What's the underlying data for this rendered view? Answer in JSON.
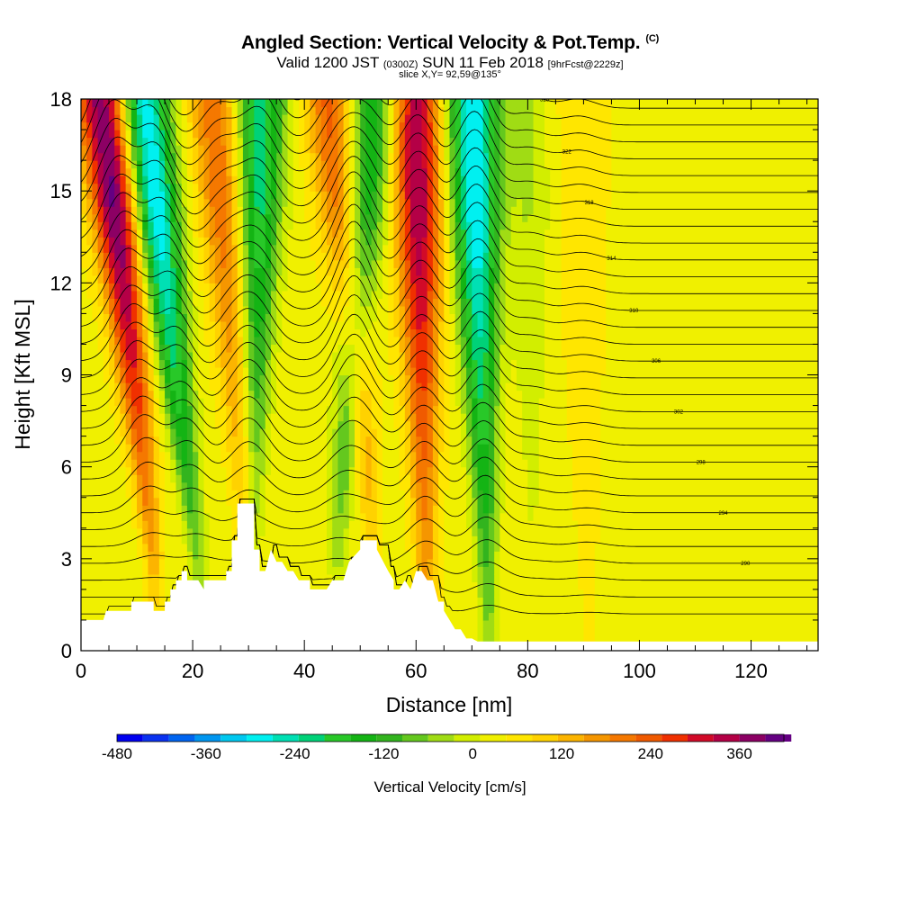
{
  "title": {
    "main": "Angled Section: Vertical Velocity & Pot.Temp.",
    "copyright": "(C)",
    "valid_prefix": "Valid 1200 JST",
    "utc": "(0300Z)",
    "valid_date": "SUN 11 Feb 2018",
    "forecast": "[9hrFcst@2229z]",
    "slice": "slice X,Y= 92,59@135°"
  },
  "colors": {
    "palette": [
      "#0000f0",
      "#0a32f0",
      "#0064f0",
      "#0096f0",
      "#00c8f0",
      "#00f0f0",
      "#00e0b4",
      "#00d278",
      "#28c828",
      "#14b414",
      "#32b41e",
      "#64c81e",
      "#a0dc14",
      "#d2ee00",
      "#f0f000",
      "#ffe600",
      "#ffd200",
      "#fcb400",
      "#f59600",
      "#f57800",
      "#f05a00",
      "#f03000",
      "#d20a28",
      "#b40046",
      "#8c0064",
      "#640082"
    ]
  },
  "chart_data": {
    "type": "heatmap",
    "title": "Angled Section: Vertical Velocity & Pot.Temp.",
    "xlabel": "Distance [nm]",
    "ylabel": "Height [Kft MSL]",
    "xlim": [
      0,
      132
    ],
    "ylim": [
      0,
      18
    ],
    "xticks": [
      0,
      20,
      40,
      60,
      80,
      100,
      120
    ],
    "xtick_labels": [
      "0",
      "20",
      "40",
      "60",
      "80",
      "100",
      "120"
    ],
    "yticks": [
      0,
      3,
      6,
      9,
      12,
      15,
      18
    ],
    "ytick_labels": [
      "0",
      "3",
      "6",
      "9",
      "12",
      "15",
      "18"
    ],
    "colorbar": {
      "label": "Vertical Velocity [cm/s]",
      "min": -480,
      "max": 420,
      "step": 35,
      "tick_values": [
        -480,
        -360,
        -240,
        -120,
        0,
        120,
        240,
        360
      ],
      "tick_labels": [
        "-480",
        "-360",
        "-240",
        "-120",
        "0",
        "120",
        "240",
        "360"
      ]
    },
    "updraft_bands": [
      {
        "x_top": 4,
        "x_bottom": 13,
        "y_bottom": 3,
        "peak_cm_s": 380
      },
      {
        "x_top": 24,
        "x_bottom": 30,
        "y_bottom": 3,
        "peak_cm_s": 190
      },
      {
        "x_top": 45,
        "x_bottom": 52,
        "y_bottom": 4,
        "peak_cm_s": 220
      },
      {
        "x_top": 60,
        "x_bottom": 62,
        "y_bottom": 1,
        "peak_cm_s": 320
      },
      {
        "x_top": 89,
        "x_bottom": 91,
        "y_bottom": 0.5,
        "peak_cm_s": 45
      }
    ],
    "downdraft_bands": [
      {
        "x_top": 11,
        "x_bottom": 21,
        "y_bottom": 3,
        "peak_cm_s": -350
      },
      {
        "x_top": 32,
        "x_bottom": 31,
        "y_bottom": 4,
        "peak_cm_s": -260
      },
      {
        "x_top": 52,
        "x_bottom": 46,
        "y_bottom": 3,
        "peak_cm_s": -240
      },
      {
        "x_top": 70,
        "x_bottom": 73,
        "y_bottom": 1,
        "peak_cm_s": -340
      },
      {
        "x_top": 80,
        "x_bottom": 81,
        "y_bottom": 2,
        "peak_cm_s": -60
      }
    ],
    "terrain_kft": [
      [
        0,
        1.0
      ],
      [
        4,
        1.0
      ],
      [
        4.5,
        1.3
      ],
      [
        9,
        1.3
      ],
      [
        9,
        1.6
      ],
      [
        13,
        1.6
      ],
      [
        13,
        1.3
      ],
      [
        15,
        1.3
      ],
      [
        15,
        1.6
      ],
      [
        16,
        1.6
      ],
      [
        16,
        2.0
      ],
      [
        17,
        2.0
      ],
      [
        17,
        2.3
      ],
      [
        18,
        2.3
      ],
      [
        18,
        2.6
      ],
      [
        19,
        2.6
      ],
      [
        19,
        2.3
      ],
      [
        21,
        2.3
      ],
      [
        22,
        2.0
      ],
      [
        22,
        2.3
      ],
      [
        26,
        2.3
      ],
      [
        26,
        2.6
      ],
      [
        27,
        2.6
      ],
      [
        27,
        3.6
      ],
      [
        28,
        3.6
      ],
      [
        28,
        4.8
      ],
      [
        31,
        4.8
      ],
      [
        31,
        3.3
      ],
      [
        32,
        3.3
      ],
      [
        32,
        2.6
      ],
      [
        33,
        2.6
      ],
      [
        34,
        3.3
      ],
      [
        35,
        2.9
      ],
      [
        36,
        2.9
      ],
      [
        37,
        2.6
      ],
      [
        38,
        2.6
      ],
      [
        39,
        2.3
      ],
      [
        41,
        2.3
      ],
      [
        41,
        2.0
      ],
      [
        44,
        2.0
      ],
      [
        45,
        2.3
      ],
      [
        47,
        2.3
      ],
      [
        48,
        2.9
      ],
      [
        50,
        3.3
      ],
      [
        50,
        3.6
      ],
      [
        53,
        3.6
      ],
      [
        53,
        3.3
      ],
      [
        55,
        2.6
      ],
      [
        56,
        2.3
      ],
      [
        56,
        2.0
      ],
      [
        57,
        2.0
      ],
      [
        58,
        2.3
      ],
      [
        59,
        2.0
      ],
      [
        60,
        2.6
      ],
      [
        61,
        2.6
      ],
      [
        62,
        2.3
      ],
      [
        63,
        2.3
      ],
      [
        64,
        1.6
      ],
      [
        65,
        1.6
      ],
      [
        65,
        1.3
      ],
      [
        66,
        1.0
      ],
      [
        67,
        0.7
      ],
      [
        68,
        0.7
      ],
      [
        69,
        0.4
      ],
      [
        70,
        0.4
      ],
      [
        71,
        0.3
      ],
      [
        132,
        0.3
      ]
    ],
    "theta_contour_labels_K": [
      286,
      290,
      294,
      298,
      302,
      306,
      310,
      314,
      318,
      322,
      326,
      330,
      334,
      338
    ]
  }
}
